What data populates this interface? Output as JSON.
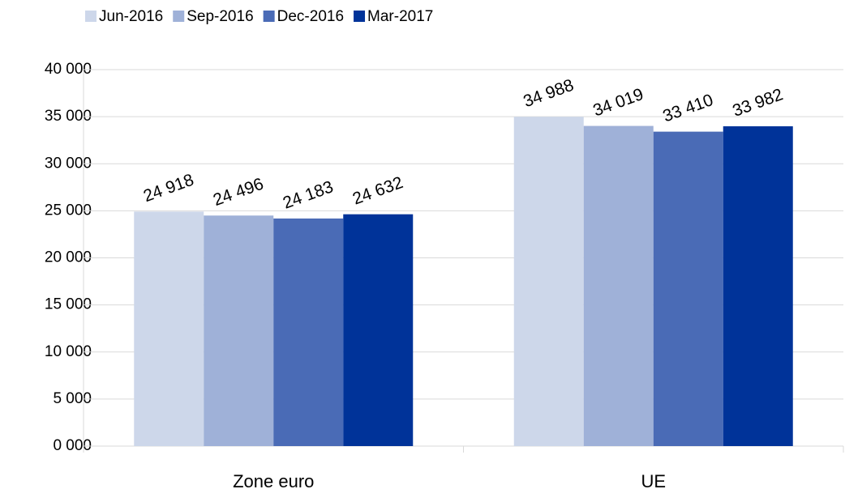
{
  "chart_data": {
    "type": "bar",
    "categories": [
      "Zone euro",
      "UE"
    ],
    "series": [
      {
        "name": "Jun-2016",
        "color": "#cdd7ea",
        "values": [
          24918,
          34988
        ],
        "value_labels": [
          "24 918",
          "34 988"
        ]
      },
      {
        "name": "Sep-2016",
        "color": "#9fb1d8",
        "values": [
          24496,
          34019
        ],
        "value_labels": [
          "24 496",
          "34 019"
        ]
      },
      {
        "name": "Dec-2016",
        "color": "#4a6bb6",
        "values": [
          24183,
          33410
        ],
        "value_labels": [
          "24 183",
          "33 410"
        ]
      },
      {
        "name": "Mar-2017",
        "color": "#003399",
        "values": [
          24632,
          33982
        ],
        "value_labels": [
          "24 632",
          "33 982"
        ]
      }
    ],
    "ylim": [
      0,
      40000
    ],
    "yticks": [
      {
        "value": 0,
        "label": "0 000"
      },
      {
        "value": 5000,
        "label": "5 000"
      },
      {
        "value": 10000,
        "label": "10 000"
      },
      {
        "value": 15000,
        "label": "15 000"
      },
      {
        "value": 20000,
        "label": "20 000"
      },
      {
        "value": 25000,
        "label": "25 000"
      },
      {
        "value": 30000,
        "label": "30 000"
      },
      {
        "value": 35000,
        "label": "35 000"
      },
      {
        "value": 40000,
        "label": "40 000"
      }
    ],
    "grid": true,
    "legend": "top-left"
  }
}
